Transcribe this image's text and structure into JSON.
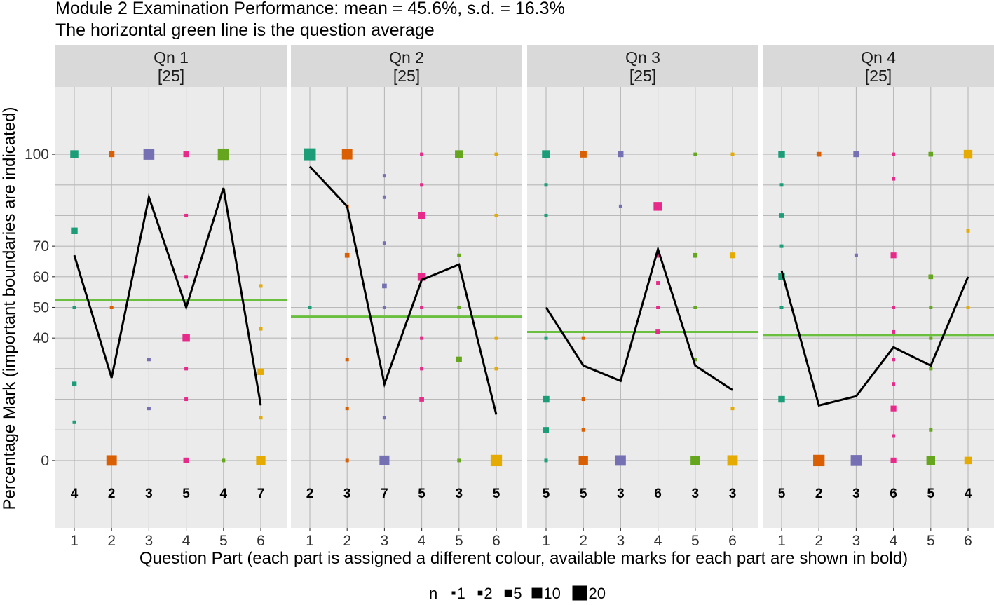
{
  "chart_data": {
    "type": "scatter",
    "title": "Module 2 Examination Performance: mean = 45.6%, s.d. = 16.3%",
    "subtitle": "The horizontal green line is the question average",
    "xlabel": "Question Part (each part is assigned a different colour, available marks for each part are shown in bold)",
    "ylabel": "Percentage Mark (important boundaries are indicated)",
    "ylim": [
      -22,
      122
    ],
    "y_ticks": [
      "0",
      "40",
      "50",
      "60",
      "70",
      "100"
    ],
    "y_tick_values": [
      0,
      40,
      50,
      60,
      70,
      100
    ],
    "x_ticks": [
      "1",
      "2",
      "3",
      "4",
      "5",
      "6"
    ],
    "part_colors": [
      "#1b9e77",
      "#d95f02",
      "#7570b3",
      "#e7298a",
      "#66a61e",
      "#e6ab02"
    ],
    "average_line_color": "#6abf3f",
    "legend": {
      "title": "n",
      "placement": "bottom",
      "entries": [
        {
          "label": "1",
          "n": 1
        },
        {
          "label": "2",
          "n": 2
        },
        {
          "label": "5",
          "n": 5
        },
        {
          "label": "10",
          "n": 10
        },
        {
          "label": "20",
          "n": 20
        }
      ]
    },
    "panels": [
      {
        "strip": "Qn 1",
        "strip_marks": "[25]",
        "average": 52.5,
        "available_marks": [
          "4",
          "2",
          "3",
          "5",
          "4",
          "7"
        ],
        "mean_line": [
          67,
          27,
          86,
          50,
          89,
          18
        ],
        "points": [
          {
            "part": 1,
            "y": 100,
            "n": 6
          },
          {
            "part": 1,
            "y": 75,
            "n": 4
          },
          {
            "part": 1,
            "y": 50,
            "n": 1
          },
          {
            "part": 1,
            "y": 25,
            "n": 2
          },
          {
            "part": 1,
            "y": 12.5,
            "n": 1
          },
          {
            "part": 2,
            "y": 100,
            "n": 3
          },
          {
            "part": 2,
            "y": 50,
            "n": 1
          },
          {
            "part": 2,
            "y": 0,
            "n": 10
          },
          {
            "part": 3,
            "y": 100,
            "n": 11
          },
          {
            "part": 3,
            "y": 33,
            "n": 1
          },
          {
            "part": 3,
            "y": 17,
            "n": 1
          },
          {
            "part": 4,
            "y": 100,
            "n": 3
          },
          {
            "part": 4,
            "y": 80,
            "n": 1
          },
          {
            "part": 4,
            "y": 60,
            "n": 0.5
          },
          {
            "part": 4,
            "y": 40,
            "n": 5
          },
          {
            "part": 4,
            "y": 30,
            "n": 0.5
          },
          {
            "part": 4,
            "y": 20,
            "n": 0.5
          },
          {
            "part": 4,
            "y": 0,
            "n": 3
          },
          {
            "part": 5,
            "y": 100,
            "n": 12
          },
          {
            "part": 5,
            "y": 88,
            "n": 0.5
          },
          {
            "part": 5,
            "y": 0,
            "n": 1
          },
          {
            "part": 6,
            "y": 57,
            "n": 1
          },
          {
            "part": 6,
            "y": 43,
            "n": 0.5
          },
          {
            "part": 6,
            "y": 29,
            "n": 4
          },
          {
            "part": 6,
            "y": 14,
            "n": 0.5
          },
          {
            "part": 6,
            "y": 0,
            "n": 8
          }
        ]
      },
      {
        "strip": "Qn 2",
        "strip_marks": "[25]",
        "average": 47,
        "available_marks": [
          "2",
          "3",
          "7",
          "5",
          "3",
          "5"
        ],
        "mean_line": [
          96,
          83,
          25,
          59,
          64,
          15
        ],
        "points": [
          {
            "part": 1,
            "y": 100,
            "n": 13
          },
          {
            "part": 1,
            "y": 50,
            "n": 1
          },
          {
            "part": 2,
            "y": 100,
            "n": 10
          },
          {
            "part": 2,
            "y": 83,
            "n": 0.5
          },
          {
            "part": 2,
            "y": 67,
            "n": 2
          },
          {
            "part": 2,
            "y": 33,
            "n": 0.5
          },
          {
            "part": 2,
            "y": 17,
            "n": 0.5
          },
          {
            "part": 2,
            "y": 0,
            "n": 0.5
          },
          {
            "part": 3,
            "y": 93,
            "n": 0.5
          },
          {
            "part": 3,
            "y": 86,
            "n": 0.5
          },
          {
            "part": 3,
            "y": 71,
            "n": 0.5
          },
          {
            "part": 3,
            "y": 57,
            "n": 2
          },
          {
            "part": 3,
            "y": 50,
            "n": 0.5
          },
          {
            "part": 3,
            "y": 14,
            "n": 1
          },
          {
            "part": 3,
            "y": 0,
            "n": 9
          },
          {
            "part": 4,
            "y": 100,
            "n": 0.5
          },
          {
            "part": 4,
            "y": 90,
            "n": 0.5
          },
          {
            "part": 4,
            "y": 80,
            "n": 4
          },
          {
            "part": 4,
            "y": 60,
            "n": 6
          },
          {
            "part": 4,
            "y": 50,
            "n": 1
          },
          {
            "part": 4,
            "y": 40,
            "n": 0.5
          },
          {
            "part": 4,
            "y": 30,
            "n": 0.5
          },
          {
            "part": 4,
            "y": 20,
            "n": 2
          },
          {
            "part": 5,
            "y": 100,
            "n": 6
          },
          {
            "part": 5,
            "y": 67,
            "n": 1
          },
          {
            "part": 5,
            "y": 50,
            "n": 1
          },
          {
            "part": 5,
            "y": 33,
            "n": 3
          },
          {
            "part": 5,
            "y": 0,
            "n": 1
          },
          {
            "part": 6,
            "y": 100,
            "n": 0.5
          },
          {
            "part": 6,
            "y": 80,
            "n": 1
          },
          {
            "part": 6,
            "y": 40,
            "n": 0.5
          },
          {
            "part": 6,
            "y": 30,
            "n": 0.5
          },
          {
            "part": 6,
            "y": 0,
            "n": 12
          }
        ]
      },
      {
        "strip": "Qn 3",
        "strip_marks": "[25]",
        "average": 42,
        "available_marks": [
          "5",
          "5",
          "3",
          "6",
          "3",
          "3"
        ],
        "mean_line": [
          50,
          31,
          26,
          69,
          31,
          23
        ],
        "points": [
          {
            "part": 1,
            "y": 100,
            "n": 6
          },
          {
            "part": 1,
            "y": 90,
            "n": 0.5
          },
          {
            "part": 1,
            "y": 80,
            "n": 0.5
          },
          {
            "part": 1,
            "y": 40,
            "n": 1
          },
          {
            "part": 1,
            "y": 20,
            "n": 4
          },
          {
            "part": 1,
            "y": 10,
            "n": 3
          },
          {
            "part": 1,
            "y": 0,
            "n": 1
          },
          {
            "part": 2,
            "y": 100,
            "n": 4
          },
          {
            "part": 2,
            "y": 40,
            "n": 0.5
          },
          {
            "part": 2,
            "y": 20,
            "n": 0.5
          },
          {
            "part": 2,
            "y": 10,
            "n": 0.5
          },
          {
            "part": 2,
            "y": 0,
            "n": 8
          },
          {
            "part": 3,
            "y": 100,
            "n": 3
          },
          {
            "part": 3,
            "y": 83,
            "n": 1
          },
          {
            "part": 3,
            "y": 0,
            "n": 10
          },
          {
            "part": 4,
            "y": 83,
            "n": 7
          },
          {
            "part": 4,
            "y": 67,
            "n": 2
          },
          {
            "part": 4,
            "y": 58,
            "n": 0.5
          },
          {
            "part": 4,
            "y": 50,
            "n": 1
          },
          {
            "part": 4,
            "y": 42,
            "n": 2
          },
          {
            "part": 5,
            "y": 100,
            "n": 1
          },
          {
            "part": 5,
            "y": 67,
            "n": 2
          },
          {
            "part": 5,
            "y": 50,
            "n": 1
          },
          {
            "part": 5,
            "y": 33,
            "n": 1
          },
          {
            "part": 5,
            "y": 0,
            "n": 8
          },
          {
            "part": 6,
            "y": 100,
            "n": 1
          },
          {
            "part": 6,
            "y": 67,
            "n": 3
          },
          {
            "part": 6,
            "y": 17,
            "n": 1
          },
          {
            "part": 6,
            "y": 0,
            "n": 10
          }
        ]
      },
      {
        "strip": "Qn 4",
        "strip_marks": "[25]",
        "average": 41,
        "available_marks": [
          "5",
          "2",
          "3",
          "6",
          "5",
          "4"
        ],
        "mean_line": [
          62,
          18,
          21,
          37,
          31,
          60
        ],
        "points": [
          {
            "part": 1,
            "y": 100,
            "n": 4
          },
          {
            "part": 1,
            "y": 90,
            "n": 0.5
          },
          {
            "part": 1,
            "y": 80,
            "n": 2
          },
          {
            "part": 1,
            "y": 70,
            "n": 0.5
          },
          {
            "part": 1,
            "y": 60,
            "n": 4
          },
          {
            "part": 1,
            "y": 50,
            "n": 0.5
          },
          {
            "part": 1,
            "y": 20,
            "n": 4
          },
          {
            "part": 2,
            "y": 100,
            "n": 2
          },
          {
            "part": 2,
            "y": 0,
            "n": 12
          },
          {
            "part": 3,
            "y": 100,
            "n": 3
          },
          {
            "part": 3,
            "y": 67,
            "n": 0.5
          },
          {
            "part": 3,
            "y": 0,
            "n": 11
          },
          {
            "part": 4,
            "y": 100,
            "n": 1
          },
          {
            "part": 4,
            "y": 92,
            "n": 0.5
          },
          {
            "part": 4,
            "y": 67,
            "n": 3
          },
          {
            "part": 4,
            "y": 50,
            "n": 0.5
          },
          {
            "part": 4,
            "y": 42,
            "n": 0.5
          },
          {
            "part": 4,
            "y": 33,
            "n": 1
          },
          {
            "part": 4,
            "y": 25,
            "n": 0.5
          },
          {
            "part": 4,
            "y": 17,
            "n": 3
          },
          {
            "part": 4,
            "y": 8,
            "n": 0.5
          },
          {
            "part": 4,
            "y": 0,
            "n": 3
          },
          {
            "part": 5,
            "y": 100,
            "n": 2
          },
          {
            "part": 5,
            "y": 60,
            "n": 2
          },
          {
            "part": 5,
            "y": 50,
            "n": 0.5
          },
          {
            "part": 5,
            "y": 40,
            "n": 1
          },
          {
            "part": 5,
            "y": 30,
            "n": 0.5
          },
          {
            "part": 5,
            "y": 10,
            "n": 1
          },
          {
            "part": 5,
            "y": 0,
            "n": 7
          },
          {
            "part": 6,
            "y": 100,
            "n": 7
          },
          {
            "part": 6,
            "y": 75,
            "n": 1
          },
          {
            "part": 6,
            "y": 50,
            "n": 1
          },
          {
            "part": 6,
            "y": 0,
            "n": 5
          }
        ]
      }
    ]
  }
}
